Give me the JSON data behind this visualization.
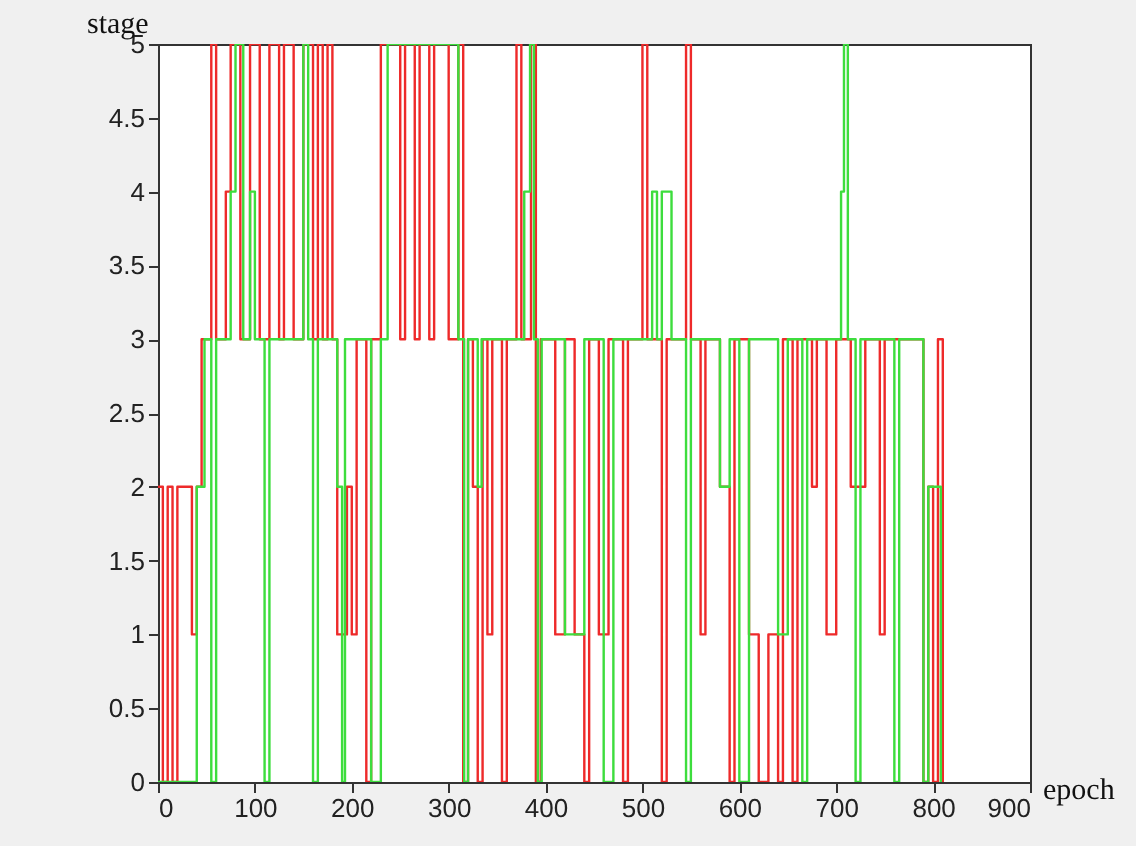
{
  "chart_data": {
    "type": "step",
    "xlabel": "epoch",
    "ylabel": "stage",
    "xlim": [
      0,
      900
    ],
    "xticks": [
      0,
      100,
      200,
      300,
      400,
      500,
      600,
      700,
      800,
      900
    ],
    "ylim": [
      0,
      5
    ],
    "yticks": [
      0,
      0.5,
      1,
      1.5,
      2,
      2.5,
      3,
      3.5,
      4,
      4.5,
      5
    ],
    "grid": false,
    "series": [
      {
        "color": "#ee2a2a",
        "x": [
          0,
          5,
          10,
          15,
          20,
          35,
          40,
          45,
          55,
          60,
          70,
          75,
          85,
          95,
          105,
          115,
          125,
          130,
          140,
          150,
          160,
          165,
          170,
          175,
          180,
          185,
          195,
          200,
          205,
          215,
          220,
          230,
          250,
          255,
          265,
          270,
          280,
          285,
          300,
          310,
          315,
          320,
          325,
          330,
          335,
          340,
          345,
          355,
          360,
          370,
          375,
          385,
          390,
          395,
          410,
          420,
          430,
          440,
          445,
          455,
          465,
          480,
          485,
          500,
          505,
          520,
          525,
          545,
          550,
          560,
          565,
          580,
          590,
          595,
          610,
          620,
          630,
          640,
          645,
          655,
          660,
          675,
          680,
          690,
          700,
          715,
          730,
          745,
          750,
          790,
          795,
          800,
          805,
          810
        ],
        "values": [
          2,
          0,
          2,
          0,
          2,
          1,
          2,
          3,
          5,
          3,
          4,
          5,
          3,
          5,
          3,
          5,
          3,
          5,
          3,
          5,
          3,
          5,
          3,
          5,
          3,
          1,
          2,
          1,
          3,
          0,
          3,
          5,
          3,
          5,
          3,
          5,
          3,
          5,
          3,
          5,
          0,
          3,
          2,
          0,
          3,
          1,
          3,
          0,
          3,
          5,
          3,
          5,
          0,
          3,
          1,
          3,
          1,
          0,
          3,
          1,
          3,
          0,
          3,
          5,
          3,
          0,
          3,
          5,
          3,
          1,
          3,
          2,
          0,
          3,
          1,
          0,
          1,
          0,
          3,
          0,
          3,
          2,
          3,
          1,
          3,
          2,
          3,
          1,
          3,
          0,
          2,
          0,
          3,
          0
        ]
      },
      {
        "color": "#3ddd3d",
        "x": [
          0,
          40,
          48,
          55,
          60,
          75,
          80,
          88,
          95,
          100,
          110,
          115,
          150,
          155,
          160,
          165,
          185,
          190,
          193,
          220,
          230,
          237,
          310,
          316,
          320,
          330,
          334,
          378,
          384,
          388,
          392,
          396,
          420,
          440,
          460,
          470,
          510,
          515,
          520,
          530,
          545,
          550,
          580,
          590,
          600,
          610,
          640,
          650,
          665,
          670,
          705,
          708,
          712,
          720,
          725,
          760,
          765,
          790,
          795,
          808
        ],
        "values": [
          0,
          2,
          3,
          0,
          3,
          4,
          5,
          3,
          4,
          3,
          0,
          3,
          5,
          3,
          0,
          3,
          2,
          0,
          3,
          0,
          3,
          5,
          3,
          0,
          3,
          2,
          3,
          4,
          5,
          3,
          0,
          3,
          1,
          3,
          0,
          3,
          4,
          3,
          4,
          3,
          0,
          3,
          2,
          3,
          0,
          3,
          1,
          3,
          0,
          3,
          4,
          5,
          3,
          0,
          3,
          0,
          3,
          0,
          2,
          0
        ]
      }
    ]
  }
}
